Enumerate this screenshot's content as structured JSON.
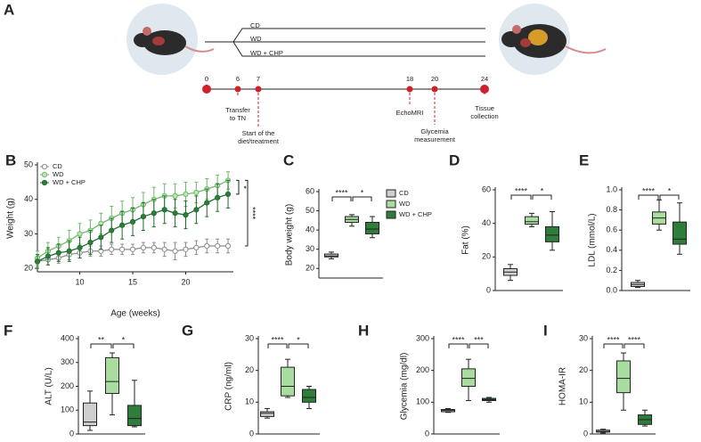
{
  "panel_a": {
    "label": "A",
    "groups": [
      "CD",
      "WD",
      "WD + CHP"
    ],
    "timeline": [
      {
        "week": 0
      },
      {
        "week": 6,
        "note": [
          "Transfer",
          "to TN"
        ]
      },
      {
        "week": 7,
        "note": [
          "Start of the",
          "diet/treatment"
        ]
      },
      {
        "week": 18,
        "note": [
          "EchoMRI"
        ]
      },
      {
        "week": 20,
        "note": [
          "Glycemia",
          "measurement"
        ]
      },
      {
        "week": 24,
        "note": [
          "Tissue",
          "collection"
        ]
      }
    ]
  },
  "chart_data": [
    {
      "type": "line",
      "panel": "B",
      "xlabel": "Age (weeks)",
      "ylabel": "Weight (g)",
      "x": [
        6,
        7,
        8,
        9,
        10,
        11,
        12,
        13,
        14,
        15,
        16,
        17,
        18,
        19,
        20,
        21,
        22,
        23,
        24
      ],
      "xlim": [
        6,
        24.5
      ],
      "ylim": [
        19,
        50
      ],
      "xticks": [
        10,
        15,
        20
      ],
      "yticks": [
        20,
        30,
        40,
        50
      ],
      "legend": "upper left",
      "series": [
        {
          "name": "CD",
          "color": "#8c8c8c",
          "fill": "#ffffff",
          "values": [
            22,
            22.5,
            23,
            24,
            24.5,
            25,
            25,
            25.5,
            25.5,
            25.5,
            26,
            26,
            25.5,
            25,
            25.5,
            26,
            26.5,
            26.5,
            26.5
          ],
          "errors": [
            1.5,
            1.5,
            1.5,
            1.5,
            1.5,
            1.5,
            1.5,
            1.5,
            1.5,
            1.5,
            1.5,
            1.5,
            2,
            2.5,
            2,
            2,
            2,
            2,
            2
          ]
        },
        {
          "name": "WD",
          "color": "#6fb86a",
          "fill": "#bfe6b4",
          "values": [
            23,
            25,
            26.5,
            28,
            30,
            31,
            33,
            34.5,
            36,
            37,
            38.5,
            40,
            41,
            41,
            41.5,
            42,
            43,
            44,
            45.5
          ],
          "errors": [
            2,
            2.5,
            2.5,
            3,
            3,
            3,
            3,
            3.5,
            3.5,
            3.5,
            3.5,
            3.5,
            3.5,
            3.5,
            3.5,
            3,
            3,
            3,
            2.5
          ]
        },
        {
          "name": "WD + CHP",
          "color": "#1f6b2e",
          "fill": "#2e7d3a",
          "values": [
            22,
            23.5,
            24.5,
            25,
            26,
            27.5,
            29,
            31,
            32.5,
            33.5,
            35,
            36,
            37,
            36,
            35.5,
            37,
            39,
            40.5,
            41.5
          ],
          "errors": [
            2,
            2.5,
            2.5,
            3,
            3,
            3.5,
            3.5,
            3.5,
            4,
            4,
            4,
            4,
            4,
            4,
            4,
            4,
            4,
            4,
            4
          ]
        }
      ],
      "significance": [
        "*",
        "****"
      ]
    },
    {
      "type": "box",
      "panel": "C",
      "ylabel": "Body weight (g)",
      "ylim": [
        15,
        60
      ],
      "yticks": [
        20,
        30,
        40,
        50,
        60
      ],
      "categories": [
        "CD",
        "WD",
        "WD + CHP"
      ],
      "legend": "right",
      "colors": [
        "#cfcfcf",
        "#a9dc9f",
        "#2e7d3a"
      ],
      "boxes": [
        {
          "min": 25,
          "q1": 26,
          "median": 26.5,
          "q3": 27.5,
          "max": 28.5
        },
        {
          "min": 42,
          "q1": 44,
          "median": 45.5,
          "q3": 47,
          "max": 48
        },
        {
          "min": 36,
          "q1": 38,
          "median": 40.5,
          "q3": 44,
          "max": 47
        }
      ],
      "significance": [
        "****",
        "*"
      ]
    },
    {
      "type": "box",
      "panel": "D",
      "ylabel": "Fat  (%)",
      "ylim": [
        0,
        60
      ],
      "yticks": [
        0,
        20,
        40,
        60
      ],
      "colors": [
        "#cfcfcf",
        "#a9dc9f",
        "#2e7d3a"
      ],
      "boxes": [
        {
          "min": 6,
          "q1": 9,
          "median": 11,
          "q3": 13,
          "max": 15.5
        },
        {
          "min": 38,
          "q1": 39.5,
          "median": 41,
          "q3": 44,
          "max": 46
        },
        {
          "min": 24,
          "q1": 29,
          "median": 33,
          "q3": 38,
          "max": 47
        }
      ],
      "significance": [
        "****",
        "*"
      ]
    },
    {
      "type": "box",
      "panel": "E",
      "ylabel": "LDL (mmol/L)",
      "ylim": [
        0,
        1
      ],
      "yticks": [
        {
          "value": 0,
          "label": "0.0"
        },
        0.2,
        0.4,
        0.6,
        0.8,
        {
          "value": 1,
          "label": "1.0"
        }
      ],
      "colors": [
        "#cfcfcf",
        "#a9dc9f",
        "#2e7d3a"
      ],
      "boxes": [
        {
          "min": 0.03,
          "q1": 0.04,
          "median": 0.06,
          "q3": 0.08,
          "max": 0.1
        },
        {
          "min": 0.6,
          "q1": 0.66,
          "median": 0.72,
          "q3": 0.78,
          "max": 0.9
        },
        {
          "min": 0.36,
          "q1": 0.46,
          "median": 0.51,
          "q3": 0.68,
          "max": 0.87
        }
      ],
      "significance": [
        "****",
        "*"
      ]
    },
    {
      "type": "box",
      "panel": "F",
      "ylabel": "ALT (U/L)",
      "ylim": [
        0,
        400
      ],
      "yticks": [
        0,
        100,
        200,
        300,
        400
      ],
      "colors": [
        "#cfcfcf",
        "#a9dc9f",
        "#2e7d3a"
      ],
      "boxes": [
        {
          "min": 15,
          "q1": 35,
          "median": 50,
          "q3": 130,
          "max": 180
        },
        {
          "min": 80,
          "q1": 170,
          "median": 220,
          "q3": 320,
          "max": 340
        },
        {
          "min": 30,
          "q1": 35,
          "median": 65,
          "q3": 120,
          "max": 225
        }
      ],
      "significance": [
        "**",
        "*"
      ]
    },
    {
      "type": "box",
      "panel": "G",
      "ylabel": "CRP (ng/ml)",
      "ylim": [
        0,
        30
      ],
      "yticks": [
        0,
        10,
        20,
        30
      ],
      "colors": [
        "#cfcfcf",
        "#a9dc9f",
        "#2e7d3a"
      ],
      "boxes": [
        {
          "min": 5,
          "q1": 5.5,
          "median": 6.5,
          "q3": 7,
          "max": 8
        },
        {
          "min": 11.5,
          "q1": 12,
          "median": 15,
          "q3": 21,
          "max": 23.5
        },
        {
          "min": 8,
          "q1": 10,
          "median": 11.5,
          "q3": 14,
          "max": 15
        }
      ],
      "significance": [
        "****",
        "*"
      ]
    },
    {
      "type": "box",
      "panel": "H",
      "ylabel": "Glycemia (mg/dl)",
      "ylim": [
        0,
        300
      ],
      "yticks": [
        0,
        100,
        200,
        300
      ],
      "colors": [
        "#cfcfcf",
        "#a9dc9f",
        "#2e7d3a"
      ],
      "boxes": [
        {
          "min": 68,
          "q1": 70,
          "median": 74,
          "q3": 77,
          "max": 80
        },
        {
          "min": 105,
          "q1": 150,
          "median": 175,
          "q3": 205,
          "max": 235
        },
        {
          "min": 100,
          "q1": 105,
          "median": 108,
          "q3": 112,
          "max": 115
        }
      ],
      "significance": [
        "****",
        "***"
      ]
    },
    {
      "type": "box",
      "panel": "I",
      "ylabel": "HOMA-IR",
      "ylim": [
        0,
        30
      ],
      "yticks": [
        0,
        10,
        20,
        30
      ],
      "colors": [
        "#cfcfcf",
        "#a9dc9f",
        "#2e7d3a"
      ],
      "boxes": [
        {
          "min": 0.3,
          "q1": 0.6,
          "median": 0.8,
          "q3": 1.2,
          "max": 1.5
        },
        {
          "min": 7.5,
          "q1": 13,
          "median": 17.5,
          "q3": 23,
          "max": 25.5
        },
        {
          "min": 2.5,
          "q1": 3,
          "median": 4.5,
          "q3": 6,
          "max": 7.5
        }
      ],
      "significance": [
        "****",
        "****"
      ]
    }
  ]
}
